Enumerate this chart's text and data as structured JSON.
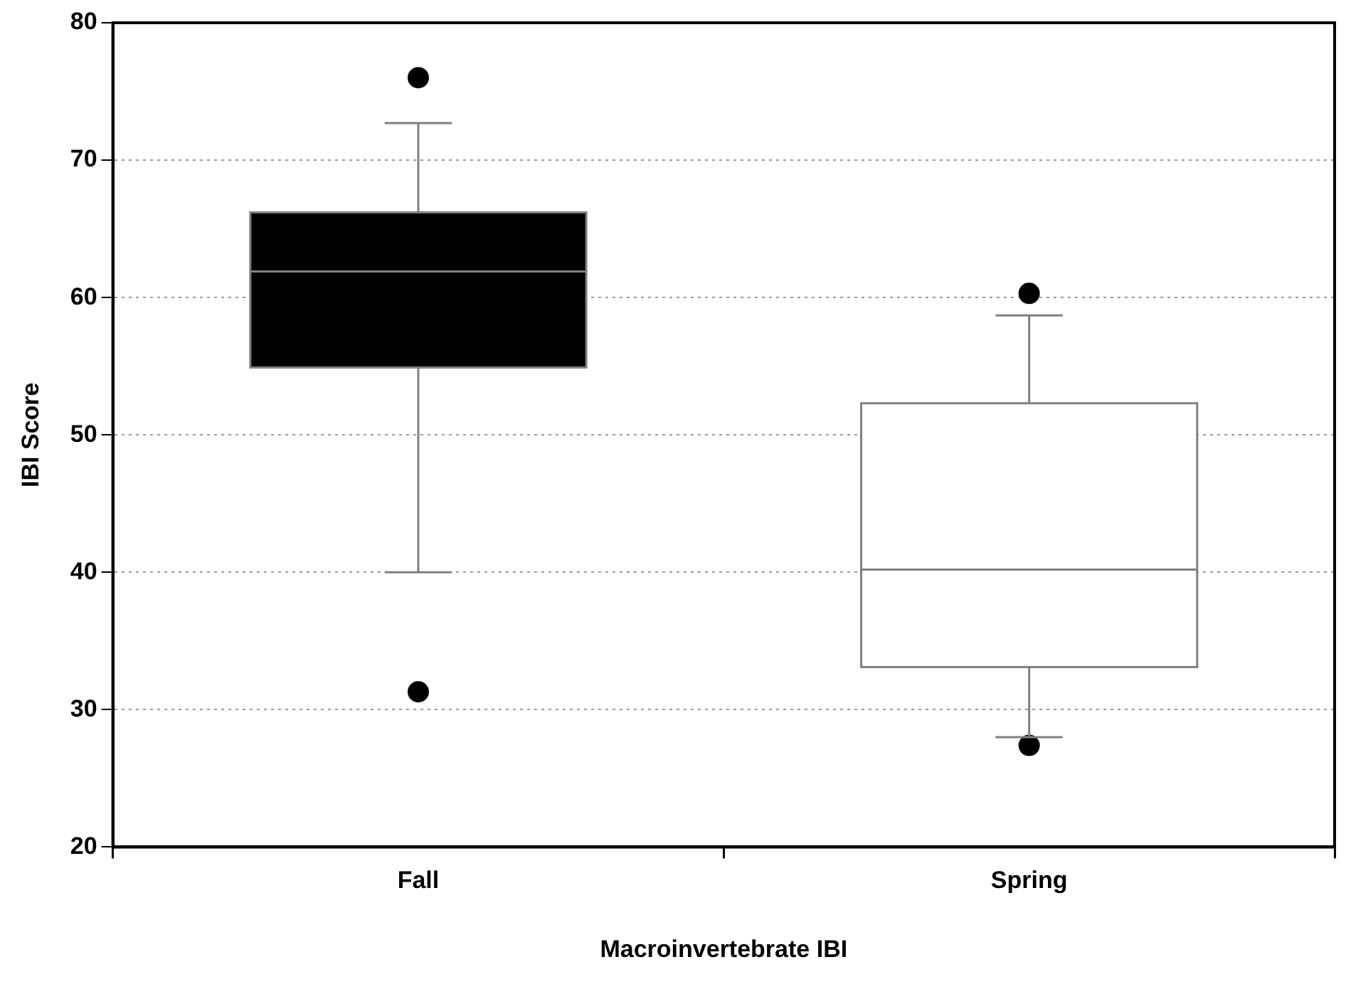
{
  "chart_data": {
    "type": "box",
    "xlabel": "Macroinvertebrate IBI",
    "ylabel": "IBI Score",
    "categories": [
      "Fall",
      "Spring"
    ],
    "boxes": [
      {
        "low": 40.0,
        "q1": 54.9,
        "median": 61.9,
        "q3": 66.2,
        "high": 72.7,
        "outliers": [
          76.0,
          31.3
        ]
      },
      {
        "low": 28.0,
        "q1": 33.1,
        "median": 40.2,
        "q3": 52.3,
        "high": 58.7,
        "outliers": [
          60.3,
          27.4
        ]
      }
    ],
    "colors": [
      "#000000",
      "#ffffff"
    ],
    "ylim": [
      20,
      80
    ],
    "yticks": [
      20,
      30,
      40,
      50,
      60,
      70,
      80
    ],
    "grid": "y",
    "legend": false
  }
}
